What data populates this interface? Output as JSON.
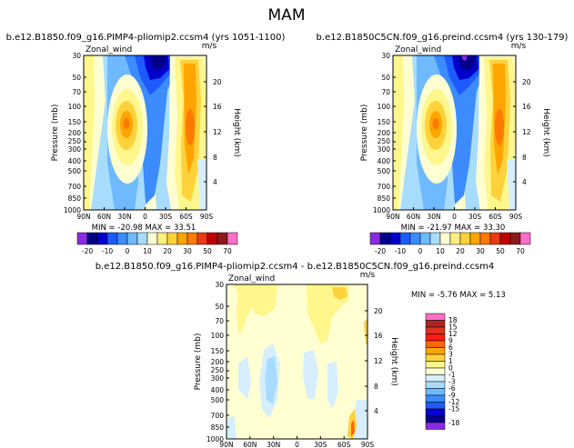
{
  "figure": {
    "main_title": "MAM",
    "min_max_format": "MIN = {min}    MAX = {max}"
  },
  "chart_data": [
    {
      "type": "heatmap",
      "id": "plio",
      "title": "b.e12.B1850.f09_g16.PIMP4-pliomip2.ccsm4  (yrs 1051-1100)",
      "variable_label": "Zonal_wind",
      "units_label": "m/s",
      "ylabel": "Pressure (mb)",
      "right_ylabel": "Height (km)",
      "x_ticks": [
        "90N",
        "60N",
        "30N",
        "0",
        "30S",
        "60S",
        "90S"
      ],
      "y_ticks": [
        "30",
        "50",
        "70",
        "100",
        "150",
        "200",
        "250",
        "300",
        "400",
        "500",
        "700",
        "850",
        "1000"
      ],
      "height_ticks": [
        "20",
        "16",
        "12",
        "8",
        "4"
      ],
      "min": "-20.98",
      "max": "33.51",
      "colorbar_labels": [
        "-20",
        "-10",
        "0",
        "10",
        "20",
        "30",
        "50",
        "70"
      ]
    },
    {
      "type": "heatmap",
      "id": "preind",
      "title": "b.e12.B1850C5CN.f09_g16.preind.ccsm4  (yrs 130-179)",
      "variable_label": "Zonal_wind",
      "units_label": "m/s",
      "ylabel": "Pressure (mb)",
      "right_ylabel": "Height (km)",
      "x_ticks": [
        "90N",
        "60N",
        "30N",
        "0",
        "30S",
        "60S",
        "90S"
      ],
      "y_ticks": [
        "30",
        "50",
        "70",
        "100",
        "150",
        "200",
        "250",
        "300",
        "400",
        "500",
        "700",
        "850",
        "1000"
      ],
      "height_ticks": [
        "20",
        "16",
        "12",
        "8",
        "4"
      ],
      "min": "-21.97",
      "max": "33.30",
      "colorbar_labels": [
        "-20",
        "-10",
        "0",
        "10",
        "20",
        "30",
        "50",
        "70"
      ]
    },
    {
      "type": "heatmap",
      "id": "diff",
      "title": "b.e12.B1850.f09_g16.PIMP4-pliomip2.ccsm4 - b.e12.B1850C5CN.f09_g16.preind.ccsm4",
      "variable_label": "Zonal_wind",
      "units_label": "m/s",
      "ylabel": "Pressure (mb)",
      "right_ylabel": "Height (km)",
      "x_ticks": [
        "90N",
        "60N",
        "30N",
        "0",
        "30S",
        "60S",
        "90S"
      ],
      "y_ticks": [
        "30",
        "50",
        "70",
        "100",
        "150",
        "200",
        "250",
        "300",
        "400",
        "500",
        "700",
        "850",
        "1000"
      ],
      "height_ticks": [
        "20",
        "16",
        "12",
        "8",
        "4"
      ],
      "min": "-5.76",
      "max": "5.13",
      "colorbar_labels": [
        "18",
        "15",
        "12",
        "9",
        "6",
        "3",
        "1",
        "0",
        "-1",
        "-3",
        "-6",
        "-9",
        "-12",
        "-15",
        "-18"
      ]
    }
  ],
  "colors": {
    "full_palette": [
      "#8a2be2",
      "#00008b",
      "#0000cd",
      "#1e5bff",
      "#3c8cff",
      "#6eb9ff",
      "#a8dcff",
      "#ffffd2",
      "#ffee80",
      "#ffd23c",
      "#ffa500",
      "#ff7a00",
      "#e83a14",
      "#c00000",
      "#8b1a1a",
      "#ff6ec7"
    ],
    "diff_palette": [
      "#ff6ec7",
      "#b22222",
      "#e0301e",
      "#ff1a1a",
      "#ff6600",
      "#ffa500",
      "#ffd23c",
      "#fff68c",
      "#ffffd2",
      "#d6eeff",
      "#a8dcff",
      "#6eb9ff",
      "#3c8cff",
      "#1e5bff",
      "#0000cd",
      "#00008b",
      "#8a2be2"
    ]
  }
}
